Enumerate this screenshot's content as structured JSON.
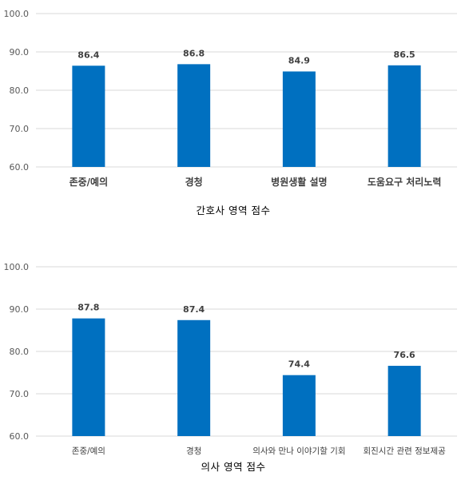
{
  "colors": {
    "bar": "#0070c0",
    "grid": "#d9d9d9",
    "text": "#404040"
  },
  "chart_data": [
    {
      "type": "bar",
      "title": "간호사 영역 점수",
      "categories": [
        "존중/예의",
        "경청",
        "병원생활 설명",
        "도움요구 처리노력"
      ],
      "values": [
        86.4,
        86.8,
        84.9,
        86.5
      ],
      "value_labels": [
        "86.4",
        "86.8",
        "84.9",
        "86.5"
      ],
      "ylim": [
        60,
        100
      ],
      "yticks": [
        "60.0",
        "70.0",
        "80.0",
        "90.0",
        "100.0"
      ],
      "grid": true,
      "legend": "none"
    },
    {
      "type": "bar",
      "title": "의사 영역 점수",
      "categories": [
        "존중/예의",
        "경청",
        "의사와 만나 이야기할 기회",
        "회진시간 관련 정보제공"
      ],
      "values": [
        87.8,
        87.4,
        74.4,
        76.6
      ],
      "value_labels": [
        "87.8",
        "87.4",
        "74.4",
        "76.6"
      ],
      "ylim": [
        60,
        100
      ],
      "yticks": [
        "60.0",
        "70.0",
        "80.0",
        "90.0",
        "100.0"
      ],
      "grid": true,
      "legend": "none"
    }
  ]
}
